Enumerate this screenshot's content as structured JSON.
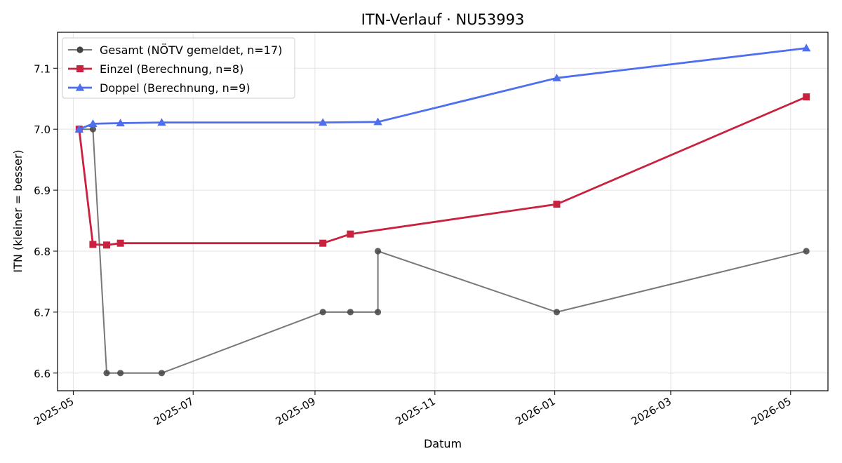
{
  "chart_data": {
    "type": "line",
    "title": "ITN-Verlauf · NU53993",
    "xlabel": "Datum",
    "ylabel": "ITN  (kleiner = besser)",
    "x_ticks": [
      "2025-05",
      "2025-07",
      "2025-09",
      "2025-11",
      "2026-01",
      "2026-03",
      "2026-05"
    ],
    "y_ticks": [
      "6.6",
      "6.7",
      "6.8",
      "6.9",
      "7.0",
      "7.1"
    ],
    "xlim": [
      "2025-04-23",
      "2026-05-20"
    ],
    "ylim": [
      6.571,
      7.159
    ],
    "grid": true,
    "legend_position": "top-left",
    "series": [
      {
        "name": "Gesamt (NÖTV gemeldet, n=17)",
        "color": "#444444",
        "marker": "circle",
        "steps": true,
        "points": [
          {
            "x": "2025-05-04",
            "y": 7.0
          },
          {
            "x": "2025-05-11",
            "y": 7.0
          },
          {
            "x": "2025-05-18",
            "y": 6.6
          },
          {
            "x": "2025-05-25",
            "y": 6.6
          },
          {
            "x": "2025-06-15",
            "y": 6.6
          },
          {
            "x": "2025-09-05",
            "y": 6.7
          },
          {
            "x": "2025-09-19",
            "y": 6.7
          },
          {
            "x": "2025-10-03",
            "y": 6.7
          },
          {
            "x": "2025-10-03",
            "y": 6.8
          },
          {
            "x": "2026-01-02",
            "y": 6.7
          },
          {
            "x": "2026-05-09",
            "y": 6.8
          }
        ]
      },
      {
        "name": "Einzel (Berechnung, n=8)",
        "color": "#c8223f",
        "marker": "square",
        "points": [
          {
            "x": "2025-05-04",
            "y": 7.0
          },
          {
            "x": "2025-05-11",
            "y": 6.811
          },
          {
            "x": "2025-05-18",
            "y": 6.81
          },
          {
            "x": "2025-05-25",
            "y": 6.813
          },
          {
            "x": "2025-09-05",
            "y": 6.813
          },
          {
            "x": "2025-09-19",
            "y": 6.828
          },
          {
            "x": "2026-01-02",
            "y": 6.877
          },
          {
            "x": "2026-05-09",
            "y": 7.053
          }
        ]
      },
      {
        "name": "Doppel (Berechnung, n=9)",
        "color": "#4e6ef0",
        "marker": "triangle",
        "points": [
          {
            "x": "2025-05-04",
            "y": 7.0
          },
          {
            "x": "2025-05-11",
            "y": 7.009
          },
          {
            "x": "2025-05-25",
            "y": 7.01
          },
          {
            "x": "2025-06-15",
            "y": 7.011
          },
          {
            "x": "2025-09-05",
            "y": 7.011
          },
          {
            "x": "2025-10-03",
            "y": 7.012
          },
          {
            "x": "2026-01-02",
            "y": 7.084
          },
          {
            "x": "2026-05-09",
            "y": 7.133
          }
        ]
      }
    ]
  }
}
